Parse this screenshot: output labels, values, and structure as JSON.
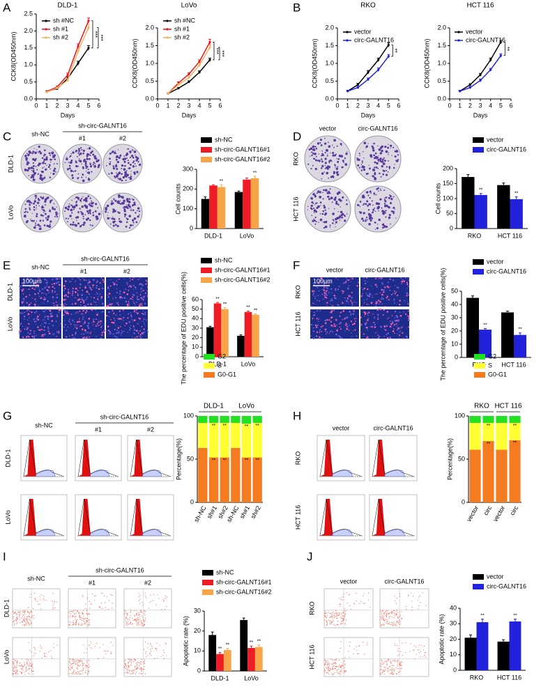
{
  "panel_letters": [
    "A",
    "B",
    "C",
    "D",
    "E",
    "F",
    "G",
    "H",
    "I",
    "J"
  ],
  "image_panels": [
    {
      "columns": [
        "sh-NC",
        "#1",
        "#2"
      ],
      "group": "sh-circ-GALNT16",
      "rows": [
        "DLD-1",
        "LoVo"
      ]
    },
    {
      "columns": [
        "vector",
        "circ-GALNT16"
      ],
      "rows": [
        "RKO",
        "HCT 116"
      ]
    },
    {
      "columns": [
        "sh-NC",
        "#1",
        "#2"
      ],
      "group": "sh-circ-GALNT16",
      "rows": [
        "DLD-1",
        "LoVo"
      ],
      "scale_bar": "100μm"
    },
    {
      "columns": [
        "vector",
        "circ-GALNT16"
      ],
      "rows": [
        "RKO",
        "HCT 116"
      ],
      "scale_bar": "100μm"
    },
    {
      "columns": [
        "sh-NC",
        "#1",
        "#2"
      ],
      "group": "sh-circ-GALNT16",
      "rows": [
        "DLD-1",
        "LoVo"
      ]
    },
    {
      "columns": [
        "vector",
        "circ-GALNT16"
      ],
      "rows": [
        "RKO",
        "HCT 116"
      ]
    },
    {
      "columns": [
        "sh-NC",
        "#1",
        "#2"
      ],
      "group": "sh-circ-GALNT16",
      "rows": [
        "DLD-1",
        "LoVo"
      ]
    },
    {
      "columns": [
        "vector",
        "circ-GALNT16"
      ],
      "rows": [
        "RKO",
        "HCT 116"
      ]
    }
  ],
  "chart_data": [
    {
      "type": "line",
      "title": "DLD-1",
      "xlabel": "Days",
      "ylabel": "CCK8(OD450nm)",
      "x": [
        1,
        2,
        3,
        4,
        5
      ],
      "xlim": [
        0,
        6
      ],
      "xticks": [
        0,
        1,
        2,
        3,
        4,
        5,
        6
      ],
      "ylim": [
        0,
        2.5
      ],
      "yticks": [
        {
          "value": 0,
          "label": "0.0"
        },
        {
          "value": 0.5,
          "label": "0.5"
        },
        {
          "value": 1,
          "label": "1.0"
        },
        {
          "value": 1.5,
          "label": "1.5"
        },
        {
          "value": 2,
          "label": "2.0"
        },
        {
          "value": 2.5,
          "label": "2.5"
        }
      ],
      "legend": "upper left",
      "annotations": [
        "***",
        "***"
      ],
      "series": [
        {
          "name": "sh #NC",
          "color": "#000000",
          "values": [
            0.22,
            0.3,
            0.6,
            1.05,
            1.5
          ],
          "errors": [
            0.02,
            0.03,
            0.05,
            0.06,
            0.07
          ]
        },
        {
          "name": "sh #1",
          "color": "#e8141c",
          "values": [
            0.22,
            0.35,
            0.7,
            1.55,
            2.3
          ],
          "errors": [
            0.02,
            0.03,
            0.06,
            0.07,
            0.08
          ]
        },
        {
          "name": "sh #2",
          "color": "#f2b35e",
          "values": [
            0.2,
            0.32,
            0.55,
            1.4,
            2.1
          ],
          "errors": [
            0.02,
            0.03,
            0.05,
            0.06,
            0.08
          ]
        }
      ]
    },
    {
      "type": "line",
      "title": "LoVo",
      "xlabel": "Days",
      "ylabel": "CCK8(OD450nm)",
      "x": [
        1,
        2,
        3,
        4,
        5
      ],
      "xlim": [
        0,
        6
      ],
      "xticks": [
        0,
        1,
        2,
        3,
        4,
        5,
        6
      ],
      "ylim": [
        0,
        2
      ],
      "yticks": [
        {
          "value": 0,
          "label": "0.0"
        },
        {
          "value": 0.5,
          "label": "0.5"
        },
        {
          "value": 1,
          "label": "1.0"
        },
        {
          "value": 1.5,
          "label": "1.5"
        },
        {
          "value": 2,
          "label": "2.0"
        }
      ],
      "legend": "upper left",
      "annotations": [
        "***",
        "***"
      ],
      "series": [
        {
          "name": "sh #NC",
          "color": "#000000",
          "values": [
            0.15,
            0.3,
            0.48,
            0.75,
            1.1
          ],
          "errors": [
            0.02,
            0.02,
            0.03,
            0.04,
            0.05
          ]
        },
        {
          "name": "sh #1",
          "color": "#e8141c",
          "values": [
            0.15,
            0.45,
            0.7,
            1.05,
            1.6
          ],
          "errors": [
            0.02,
            0.03,
            0.04,
            0.05,
            0.08
          ]
        },
        {
          "name": "sh #2",
          "color": "#f2b35e",
          "values": [
            0.15,
            0.4,
            0.6,
            0.95,
            1.45
          ],
          "errors": [
            0.02,
            0.03,
            0.04,
            0.05,
            0.06
          ]
        }
      ]
    },
    {
      "type": "line",
      "title": "RKO",
      "xlabel": "Days",
      "ylabel": "CCK8(OD450nm)",
      "x": [
        1,
        2,
        3,
        4,
        5
      ],
      "xlim": [
        0,
        6
      ],
      "xticks": [
        0,
        1,
        2,
        3,
        4,
        5,
        6
      ],
      "ylim": [
        0,
        2
      ],
      "yticks": [
        {
          "value": 0,
          "label": "0.0"
        },
        {
          "value": 0.5,
          "label": "0.5"
        },
        {
          "value": 1,
          "label": "1.0"
        },
        {
          "value": 1.5,
          "label": "1.5"
        },
        {
          "value": 2,
          "label": "2.0"
        }
      ],
      "legend": "upper left",
      "annotations": [
        "**"
      ],
      "series": [
        {
          "name": "vector",
          "color": "#000000",
          "values": [
            0.22,
            0.4,
            0.75,
            1.1,
            1.52
          ],
          "errors": [
            0.02,
            0.04,
            0.05,
            0.05,
            0.06
          ]
        },
        {
          "name": "circ-GALNT16",
          "color": "#2222dd",
          "values": [
            0.22,
            0.32,
            0.55,
            0.82,
            1.2
          ],
          "errors": [
            0.02,
            0.03,
            0.04,
            0.05,
            0.05
          ]
        }
      ]
    },
    {
      "type": "line",
      "title": "HCT 116",
      "xlabel": "Days",
      "ylabel": "CCK8(OD450nm)",
      "x": [
        1,
        2,
        3,
        4,
        5
      ],
      "xlim": [
        0,
        6
      ],
      "xticks": [
        0,
        1,
        2,
        3,
        4,
        5,
        6
      ],
      "ylim": [
        0,
        2
      ],
      "yticks": [
        {
          "value": 0,
          "label": "0.0"
        },
        {
          "value": 0.5,
          "label": "0.5"
        },
        {
          "value": 1,
          "label": "1.0"
        },
        {
          "value": 1.5,
          "label": "1.5"
        },
        {
          "value": 2,
          "label": "2.0"
        }
      ],
      "legend": "upper left",
      "annotations": [
        "**"
      ],
      "series": [
        {
          "name": "vector",
          "color": "#000000",
          "values": [
            0.22,
            0.4,
            0.68,
            1.1,
            1.6
          ],
          "errors": [
            0.02,
            0.03,
            0.04,
            0.05,
            0.05
          ]
        },
        {
          "name": "circ-GALNT16",
          "color": "#2222dd",
          "values": [
            0.22,
            0.32,
            0.52,
            0.82,
            1.22
          ],
          "errors": [
            0.02,
            0.03,
            0.04,
            0.04,
            0.05
          ]
        }
      ]
    },
    {
      "type": "bar",
      "ylabel": "Cell counts",
      "categories": [
        "DLD-1",
        "LoVo"
      ],
      "ylim": [
        0,
        300
      ],
      "yticks": [
        0,
        100,
        200,
        300
      ],
      "legend": "top",
      "series": [
        {
          "name": "sh-NC",
          "color": "#000000",
          "values": [
            150,
            185
          ],
          "errors": [
            10,
            5
          ]
        },
        {
          "name": "sh-circ-GALNT16#1",
          "color": "#ee1c24",
          "values": [
            218,
            248
          ],
          "errors": [
            4,
            8
          ]
        },
        {
          "name": "sh-circ-GALNT16#2",
          "color": "#f7a548",
          "values": [
            210,
            255
          ],
          "errors": [
            12,
            10
          ],
          "significance": [
            "**",
            "**"
          ]
        }
      ]
    },
    {
      "type": "bar",
      "ylabel": "Cell counts",
      "categories": [
        "RKO",
        "HCT 116"
      ],
      "ylim": [
        0,
        200
      ],
      "yticks": [
        0,
        50,
        100,
        150,
        200
      ],
      "legend": "top",
      "series": [
        {
          "name": "vector",
          "color": "#000000",
          "values": [
            172,
            145
          ],
          "errors": [
            8,
            7
          ]
        },
        {
          "name": "circ-GALNT16",
          "color": "#2222dd",
          "values": [
            112,
            98
          ],
          "errors": [
            5,
            8
          ],
          "significance": [
            "**",
            "**"
          ]
        }
      ]
    },
    {
      "type": "bar",
      "ylabel": "The percentage of EDU positive cells(%)",
      "categories": [
        "DLD-1",
        "LoVo"
      ],
      "ylim": [
        0,
        60
      ],
      "yticks": [
        0,
        10,
        20,
        30,
        40,
        50,
        60
      ],
      "legend": "top",
      "series": [
        {
          "name": "sh-NC",
          "color": "#000000",
          "values": [
            31,
            22
          ],
          "errors": [
            1,
            1
          ]
        },
        {
          "name": "sh-circ-GALNT16#1",
          "color": "#ee1c24",
          "values": [
            56,
            47
          ],
          "errors": [
            1,
            1
          ],
          "significance": [
            "**",
            "**"
          ]
        },
        {
          "name": "sh-circ-GALNT16#2",
          "color": "#f7a548",
          "values": [
            50,
            44
          ],
          "errors": [
            1.5,
            1
          ],
          "significance": [
            "**",
            "**"
          ]
        }
      ]
    },
    {
      "type": "bar",
      "ylabel": "The percentage of EDU positive cells(%)",
      "categories": [
        "RKO",
        "HCT 116"
      ],
      "ylim": [
        0,
        50
      ],
      "yticks": [
        0,
        10,
        20,
        30,
        40,
        50
      ],
      "legend": "top",
      "series": [
        {
          "name": "vector",
          "color": "#000000",
          "values": [
            45,
            34
          ],
          "errors": [
            1.5,
            1
          ]
        },
        {
          "name": "circ-GALNT16",
          "color": "#2222dd",
          "values": [
            21,
            17
          ],
          "errors": [
            0.8,
            1.5
          ],
          "significance": [
            "**",
            "**"
          ]
        }
      ]
    },
    {
      "type": "stacked",
      "ylabel": "Percentage(%)",
      "categories": [
        "sh-NC",
        "sh#1",
        "sh#2",
        "sh-NC",
        "sh#1",
        "sh#2"
      ],
      "groups": [
        "DLD-1",
        "LoVo"
      ],
      "ylim": [
        0,
        100
      ],
      "yticks": [
        0,
        50,
        100
      ],
      "legend": "top",
      "series": [
        {
          "name": "G0-G1",
          "color": "#f57b20",
          "values": [
            63,
            52,
            52,
            63,
            52,
            52
          ],
          "significance": [
            null,
            "**",
            "**",
            null,
            "**",
            "**"
          ]
        },
        {
          "name": "S",
          "color": "#ffff33",
          "values": [
            29,
            40,
            40,
            29,
            39,
            40
          ],
          "significance": [
            null,
            "**",
            "**",
            null,
            "**",
            "**"
          ]
        },
        {
          "name": "G2",
          "color": "#22e022",
          "values": [
            8,
            8,
            8,
            8,
            9,
            8
          ]
        }
      ]
    },
    {
      "type": "stacked",
      "ylabel": "Percentage(%)",
      "categories": [
        "vector",
        "circ",
        "vector",
        "circ"
      ],
      "groups": [
        "RKO",
        "HCT 116"
      ],
      "ylim": [
        0,
        100
      ],
      "yticks": [
        0,
        50,
        100
      ],
      "legend": "top",
      "series": [
        {
          "name": "G0-G1",
          "color": "#f57b20",
          "values": [
            61,
            71,
            61,
            72
          ],
          "significance": [
            null,
            "**",
            null,
            "**"
          ]
        },
        {
          "name": "S",
          "color": "#ffff33",
          "values": [
            31,
            21,
            31,
            20
          ],
          "significance": [
            null,
            "**",
            null,
            "**"
          ]
        },
        {
          "name": "G2",
          "color": "#22e022",
          "values": [
            8,
            8,
            8,
            8
          ]
        }
      ]
    },
    {
      "type": "bar",
      "ylabel": "Apoptotic rate (%)",
      "categories": [
        "DLD-1",
        "LoVo"
      ],
      "ylim": [
        0,
        30
      ],
      "yticks": [
        0,
        10,
        20,
        30
      ],
      "legend": "top",
      "series": [
        {
          "name": "sh-NC",
          "color": "#000000",
          "values": [
            18,
            25.5
          ],
          "errors": [
            1.5,
            1
          ]
        },
        {
          "name": "sh-circ-GALNT16#1",
          "color": "#ee1c24",
          "values": [
            8.5,
            11.5
          ],
          "errors": [
            0.8,
            1
          ],
          "significance": [
            "**",
            "**"
          ]
        },
        {
          "name": "sh-circ-GALNT16#2",
          "color": "#f7a548",
          "values": [
            10.5,
            12
          ],
          "errors": [
            0.8,
            1
          ],
          "significance": [
            "**",
            "**"
          ]
        }
      ]
    },
    {
      "type": "bar",
      "ylabel": "Apoptotic rate (%)",
      "categories": [
        "RKO",
        "HCT 116"
      ],
      "ylim": [
        0,
        40
      ],
      "yticks": [
        0,
        10,
        20,
        30,
        40
      ],
      "legend": "top",
      "series": [
        {
          "name": "vector",
          "color": "#000000",
          "values": [
            21,
            18.5
          ],
          "errors": [
            1.8,
            1.2
          ]
        },
        {
          "name": "circ-GALNT16",
          "color": "#2222dd",
          "values": [
            31,
            31.5
          ],
          "errors": [
            2,
            1.5
          ],
          "significance": [
            "**",
            "**"
          ]
        }
      ]
    }
  ]
}
